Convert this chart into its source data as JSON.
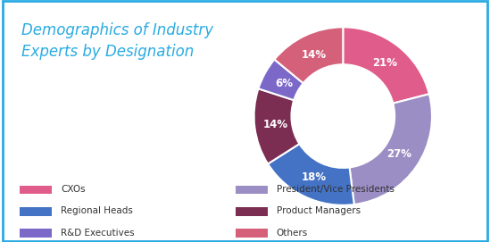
{
  "title": "Demographics of Industry\nExperts by Designation",
  "title_color": "#29ABE2",
  "background_color": "#ffffff",
  "border_color": "#29ABE2",
  "slices": [
    {
      "label": "CXOs",
      "pct": 21,
      "color": "#E05C8A"
    },
    {
      "label": "President/Vice Presidents",
      "pct": 27,
      "color": "#9B8EC4"
    },
    {
      "label": "Regional Heads",
      "pct": 18,
      "color": "#4472C4"
    },
    {
      "label": "Product Managers",
      "pct": 14,
      "color": "#7B2D52"
    },
    {
      "label": "R&D Executives",
      "pct": 6,
      "color": "#7B68C8"
    },
    {
      "label": "Others",
      "pct": 14,
      "color": "#D4607A"
    }
  ],
  "legend_rows": [
    [
      "CXOs",
      "President/Vice Presidents"
    ],
    [
      "Regional Heads",
      "Product Managers"
    ],
    [
      "R&D Executives",
      "Others"
    ]
  ],
  "pct_fontsize": 8.5,
  "pct_color": "white",
  "title_fontsize": 12,
  "legend_fontsize": 7.5
}
